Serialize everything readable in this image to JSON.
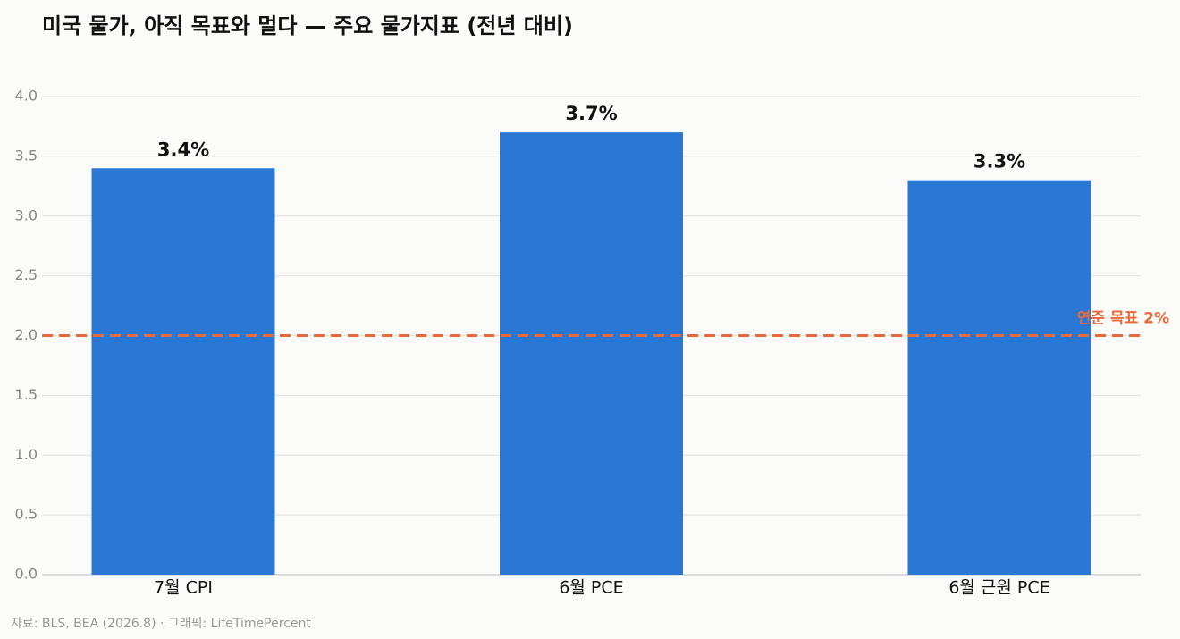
{
  "chart_data": {
    "type": "bar",
    "title": "미국 물가, 아직 목표와 멀다 — 주요 물가지표 (전년 대비)",
    "categories": [
      "7월 CPI",
      "6월 PCE",
      "6월 근원 PCE"
    ],
    "values": [
      3.4,
      3.7,
      3.3
    ],
    "value_labels": [
      "3.4%",
      "3.7%",
      "3.3%"
    ],
    "color": "#2b78d4",
    "ylim": [
      0,
      4
    ],
    "yticks": [
      {
        "value": 0,
        "label": "0.0"
      },
      0.5,
      {
        "value": 1,
        "label": "1.0"
      },
      1.5,
      {
        "value": 2,
        "label": "2.0"
      },
      2.5,
      {
        "value": 3,
        "label": "3.0"
      },
      3.5,
      {
        "value": 4,
        "label": "4.0"
      }
    ],
    "grid": true,
    "reference_line": {
      "value": 2,
      "label": "연준 목표 2%",
      "color": "#e8693a"
    },
    "source": "자료: BLS, BEA (2026.8) · 그래픽: LifeTimePercent"
  }
}
